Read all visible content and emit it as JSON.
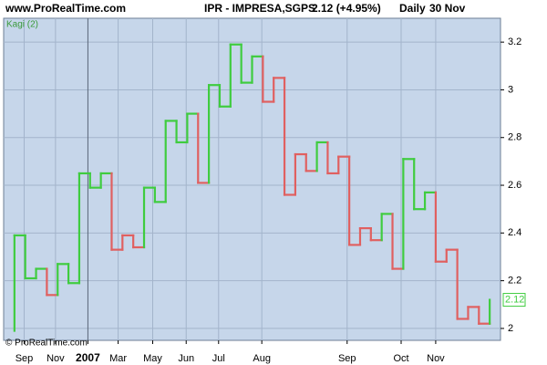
{
  "header": {
    "site": "www.ProRealTime.com",
    "symbol": "IPR - IMPRESA,SGPS",
    "quote": "2.12 (+4.95%)",
    "period": "Daily",
    "date": "30 Nov"
  },
  "chart_data": {
    "type": "kagi",
    "label": "Kagi (2)",
    "footer": "© ProRealTime.com",
    "start": 1.99,
    "x": [
      0,
      1,
      2,
      3,
      4,
      5,
      6,
      7,
      8,
      9,
      10,
      11,
      12,
      13,
      14,
      15,
      16,
      17,
      18,
      19,
      20,
      21,
      22,
      23,
      24,
      25,
      26,
      27,
      28,
      29,
      30,
      31,
      32,
      33,
      34,
      35,
      36,
      37,
      38,
      39,
      40,
      41,
      42,
      43,
      44
    ],
    "values": [
      2.39,
      2.21,
      2.25,
      2.14,
      2.27,
      2.19,
      2.65,
      2.59,
      2.65,
      2.33,
      2.39,
      2.34,
      2.59,
      2.53,
      2.87,
      2.78,
      2.9,
      2.61,
      3.02,
      2.93,
      3.19,
      3.03,
      3.14,
      2.95,
      3.05,
      2.56,
      2.73,
      2.66,
      2.78,
      2.65,
      2.72,
      2.35,
      2.42,
      2.37,
      2.48,
      2.25,
      2.71,
      2.5,
      2.57,
      2.28,
      2.33,
      2.04,
      2.09,
      2.02,
      2.12
    ],
    "line_colors": [
      "#3fcc3f",
      "#3fcc3f",
      "#3fcc3f",
      "#e06060",
      "#3fcc3f",
      "#3fcc3f",
      "#3fcc3f",
      "#3fcc3f",
      "#3fcc3f",
      "#e06060",
      "#e06060",
      "#e06060",
      "#3fcc3f",
      "#3fcc3f",
      "#3fcc3f",
      "#3fcc3f",
      "#3fcc3f",
      "#e06060",
      "#3fcc3f",
      "#3fcc3f",
      "#3fcc3f",
      "#3fcc3f",
      "#3fcc3f",
      "#e06060",
      "#e06060",
      "#e06060",
      "#e06060",
      "#e06060",
      "#3fcc3f",
      "#e06060",
      "#e06060",
      "#e06060",
      "#e06060",
      "#e06060",
      "#3fcc3f",
      "#e06060",
      "#3fcc3f",
      "#3fcc3f",
      "#3fcc3f",
      "#e06060",
      "#e06060",
      "#e06060",
      "#e06060",
      "#e06060",
      "#3fcc3f"
    ],
    "xlim": [
      -1,
      45
    ],
    "xticks": [
      {
        "value": 0.9,
        "label": "Sep"
      },
      {
        "value": 3.8,
        "label": "Nov"
      },
      {
        "value": 6.8,
        "label": "2007"
      },
      {
        "value": 9.6,
        "label": "Mar"
      },
      {
        "value": 12.8,
        "label": "May"
      },
      {
        "value": 15.9,
        "label": "Jun"
      },
      {
        "value": 18.9,
        "label": "Jul"
      },
      {
        "value": 22.9,
        "label": "Aug"
      },
      {
        "value": 30.8,
        "label": "Sep"
      },
      {
        "value": 35.8,
        "label": "Oct"
      },
      {
        "value": 39.0,
        "label": "Nov"
      }
    ],
    "ylim": [
      1.95,
      3.3
    ],
    "yticks": [
      2,
      2.2,
      2.4,
      2.6,
      2.8,
      3,
      3.2
    ],
    "grid": true
  }
}
